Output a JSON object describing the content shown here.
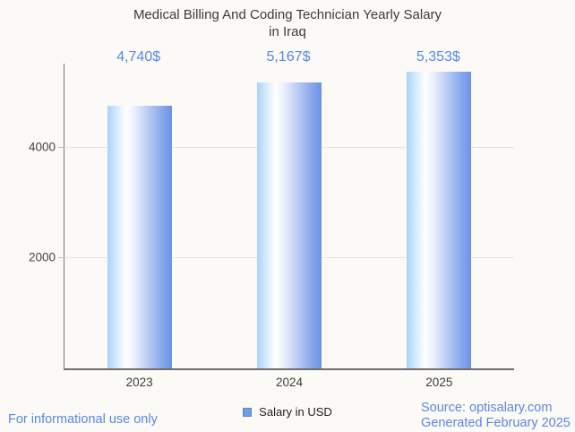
{
  "page": {
    "background": "#fbfaf7"
  },
  "title": {
    "line1": "Medical Billing And Coding Technician Yearly Salary",
    "line2": "in Iraq"
  },
  "chart_data": {
    "type": "bar",
    "title": "Medical Billing And Coding Technician Yearly Salary in Iraq",
    "categories": [
      "2023",
      "2024",
      "2025"
    ],
    "series": [
      {
        "name": "Salary in USD",
        "values": [
          4740,
          5167,
          5353
        ]
      }
    ],
    "value_labels": [
      "4,740$",
      "5,167$",
      "5,353$"
    ],
    "xlabel": "",
    "ylabel": "",
    "ylim": [
      0,
      5500
    ],
    "yticks": [
      2000,
      4000
    ],
    "grid": true,
    "legend_position": "bottom",
    "bar_gradient": [
      "#a9d2fa",
      "#ffffff",
      "#6b92e6"
    ]
  },
  "legend": {
    "label": "Salary in USD",
    "swatch_color": "#6d9ee6"
  },
  "footer": {
    "disclaimer": "For informational use only",
    "source_line1": "Source: optisalary.com",
    "source_line2": "Generated February 2025"
  },
  "colors": {
    "accent_blue": "#5a86e8",
    "title_text": "#3b3b3b",
    "axis_line": "#757575",
    "gridline": "#e3e3e3"
  }
}
